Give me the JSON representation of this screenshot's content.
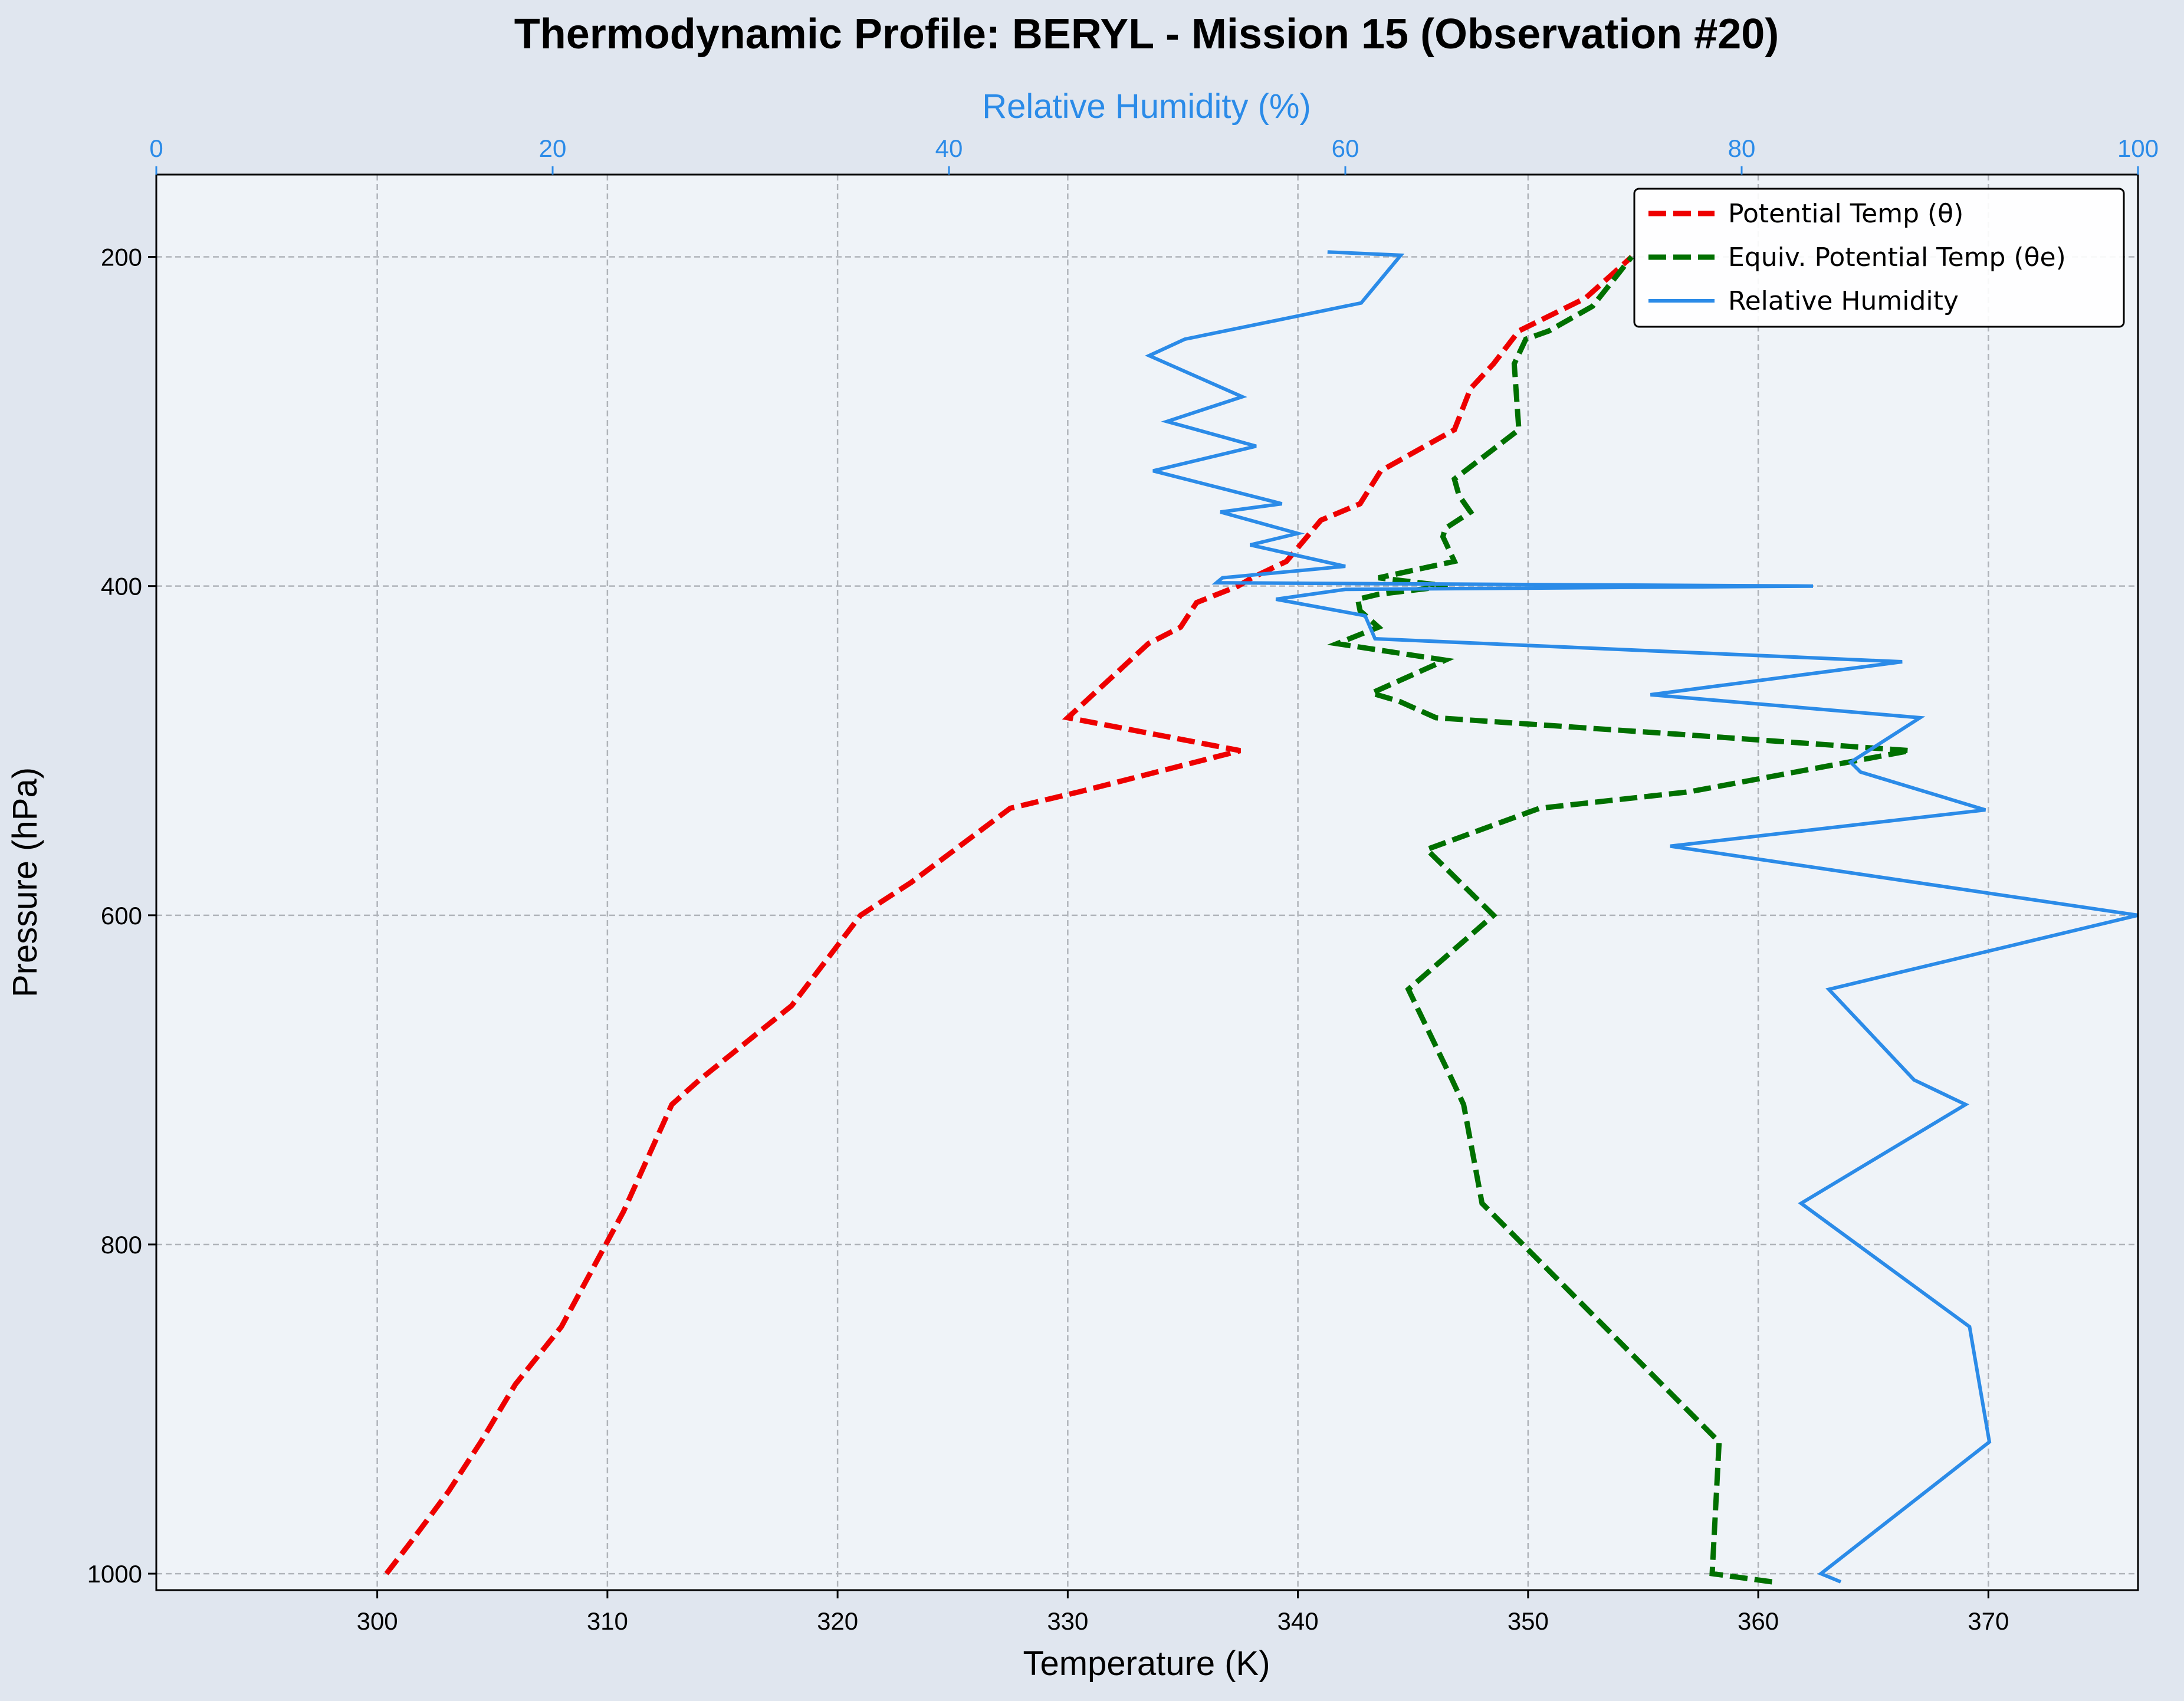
{
  "chart_data": {
    "type": "line",
    "title": "Thermodynamic Profile:  BERYL - Mission 15 (Observation #20)",
    "xlabel": "Temperature (K)",
    "ylabel": "Pressure (hPa)",
    "x2label": "Relative Humidity (%)",
    "xlim": [
      290.4,
      376.5
    ],
    "x2lim": [
      0,
      100
    ],
    "ylim": [
      1010,
      150
    ],
    "y_inverted": true,
    "xticks": [
      300,
      310,
      320,
      330,
      340,
      350,
      360,
      370
    ],
    "x2ticks": [
      0,
      20,
      40,
      60,
      80,
      100
    ],
    "yticks": [
      200,
      400,
      600,
      800,
      1000
    ],
    "grid": true,
    "legend_position": "top-right",
    "colors": {
      "figure_background": "#e0e6ef",
      "plot_background": "#eff3f8",
      "theta": "#ee0000",
      "theta_e": "#007000",
      "rh": "#2b8be8",
      "grid": "#b0b4ba"
    },
    "series": [
      {
        "name": "Potential Temp (θ)",
        "axis": "temperature",
        "style": "dashed",
        "points": [
          [
            300.4,
            1000
          ],
          [
            301.5,
            980
          ],
          [
            303.1,
            950
          ],
          [
            304.5,
            920
          ],
          [
            306,
            885
          ],
          [
            308,
            850
          ],
          [
            310.7,
            780
          ],
          [
            312.8,
            715
          ],
          [
            314,
            700
          ],
          [
            318,
            655
          ],
          [
            321,
            600
          ],
          [
            323.2,
            580
          ],
          [
            327.5,
            535
          ],
          [
            330.5,
            525
          ],
          [
            337.5,
            500
          ],
          [
            330,
            480
          ],
          [
            333.5,
            435
          ],
          [
            334.9,
            425
          ],
          [
            335.6,
            410
          ],
          [
            337.4,
            400
          ],
          [
            338,
            395
          ],
          [
            339.5,
            385
          ],
          [
            341,
            360
          ],
          [
            342.7,
            350
          ],
          [
            343.6,
            330
          ],
          [
            346.8,
            305
          ],
          [
            347.5,
            280
          ],
          [
            348.5,
            265
          ],
          [
            349.6,
            245
          ],
          [
            352.5,
            225
          ],
          [
            354.5,
            200
          ]
        ]
      },
      {
        "name": "Equiv. Potential Temp (θe)",
        "axis": "temperature",
        "style": "dashed",
        "points": [
          [
            360.6,
            1005
          ],
          [
            358,
            1000
          ],
          [
            358.3,
            920
          ],
          [
            348,
            775
          ],
          [
            347.2,
            715
          ],
          [
            346.7,
            700
          ],
          [
            344.8,
            645
          ],
          [
            348.5,
            600
          ],
          [
            345.6,
            560
          ],
          [
            350.5,
            535
          ],
          [
            357,
            525
          ],
          [
            366.6,
            500
          ],
          [
            356.5,
            490
          ],
          [
            346,
            480
          ],
          [
            344.4,
            470
          ],
          [
            343.2,
            465
          ],
          [
            346.4,
            445
          ],
          [
            341.7,
            435
          ],
          [
            343.5,
            425
          ],
          [
            342.7,
            415
          ],
          [
            342.6,
            408
          ],
          [
            343.5,
            405
          ],
          [
            346.5,
            400
          ],
          [
            343.5,
            395
          ],
          [
            346.8,
            385
          ],
          [
            346.3,
            370
          ],
          [
            346.4,
            365
          ],
          [
            347.5,
            355
          ],
          [
            347,
            345
          ],
          [
            346.8,
            335
          ],
          [
            349.6,
            305
          ],
          [
            349.4,
            265
          ],
          [
            349.9,
            250
          ],
          [
            350.9,
            245
          ],
          [
            352.8,
            230
          ],
          [
            354.5,
            200
          ]
        ]
      },
      {
        "name": "Relative Humidity",
        "axis": "humidity",
        "style": "solid",
        "points": [
          [
            85,
            1005
          ],
          [
            84,
            1000
          ],
          [
            92.5,
            920
          ],
          [
            91.5,
            850
          ],
          [
            83,
            775
          ],
          [
            91.3,
            715
          ],
          [
            88.7,
            700
          ],
          [
            84.4,
            645
          ],
          [
            100,
            600
          ],
          [
            76.4,
            558
          ],
          [
            92.3,
            536
          ],
          [
            86,
            513
          ],
          [
            85.5,
            507
          ],
          [
            89,
            480
          ],
          [
            75.4,
            466
          ],
          [
            88.1,
            446
          ],
          [
            61.5,
            432
          ],
          [
            61,
            418
          ],
          [
            56.5,
            408
          ],
          [
            60,
            402
          ],
          [
            83.6,
            400
          ],
          [
            53.5,
            398
          ],
          [
            53.8,
            395
          ],
          [
            60,
            388
          ],
          [
            55.2,
            375
          ],
          [
            57.6,
            368
          ],
          [
            53.7,
            355
          ],
          [
            56.8,
            350
          ],
          [
            50.3,
            330
          ],
          [
            55.5,
            315
          ],
          [
            51,
            300
          ],
          [
            54.8,
            285
          ],
          [
            50.1,
            260
          ],
          [
            51.9,
            250
          ],
          [
            60.8,
            228
          ],
          [
            62.8,
            199
          ],
          [
            59.1,
            197
          ]
        ]
      }
    ]
  }
}
